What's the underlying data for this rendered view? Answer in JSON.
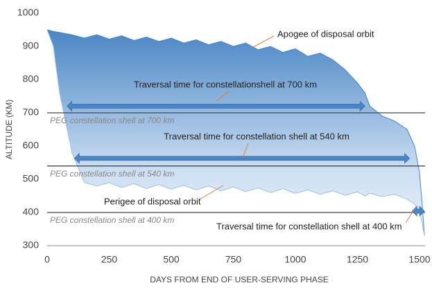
{
  "chart_data": {
    "type": "band",
    "xlabel": "DAYS FROM END OF USER-SERVING PHASE",
    "ylabel": "ALTITUDE (KM)",
    "x": [
      0,
      25,
      50,
      100,
      150,
      200,
      250,
      300,
      350,
      400,
      450,
      500,
      550,
      600,
      650,
      700,
      750,
      800,
      850,
      900,
      950,
      1000,
      1050,
      1100,
      1150,
      1200,
      1250,
      1280,
      1300,
      1350,
      1400,
      1450,
      1480,
      1500,
      1510,
      1520
    ],
    "series": [
      {
        "name": "Apogee of disposal orbit",
        "color": "#4a86c5",
        "values": [
          950,
          945,
          942,
          935,
          925,
          935,
          922,
          932,
          918,
          928,
          915,
          925,
          910,
          920,
          905,
          915,
          900,
          910,
          890,
          900,
          882,
          893,
          870,
          880,
          860,
          830,
          790,
          760,
          720,
          690,
          675,
          650,
          600,
          520,
          430,
          330
        ]
      },
      {
        "name": "Perigee of disposal orbit",
        "color": "#9cc0e6",
        "values": [
          950,
          900,
          760,
          580,
          490,
          480,
          490,
          475,
          487,
          472,
          484,
          470,
          482,
          468,
          480,
          465,
          477,
          463,
          474,
          460,
          472,
          457,
          468,
          455,
          465,
          452,
          462,
          450,
          458,
          448,
          455,
          440,
          425,
          400,
          370,
          330
        ]
      }
    ],
    "xlim": [
      0,
      1500
    ],
    "xticks": [
      0,
      250,
      500,
      750,
      1000,
      1250,
      1500
    ],
    "ylim": [
      300,
      1000
    ],
    "yticks": [
      300,
      400,
      500,
      600,
      700,
      800,
      900,
      1000
    ],
    "shells": [
      {
        "value": 700,
        "label": "PEG constellation shell at 700 km"
      },
      {
        "value": 540,
        "label": "PEG constellation shell at 540 km"
      },
      {
        "value": 400,
        "label": "PEG constellation shell at 400 km"
      }
    ],
    "arrows": [
      {
        "label": "Traversal time for constellationshell at 700 km",
        "from": 80,
        "to": 1280,
        "at": 720
      },
      {
        "label": "Traversal time for constellation shell at 540 km",
        "from": 110,
        "to": 1460,
        "at": 563
      },
      {
        "label": "Traversal time for constellation shell at 400 km",
        "from": 1470,
        "to": 1520,
        "at": 404
      }
    ]
  }
}
